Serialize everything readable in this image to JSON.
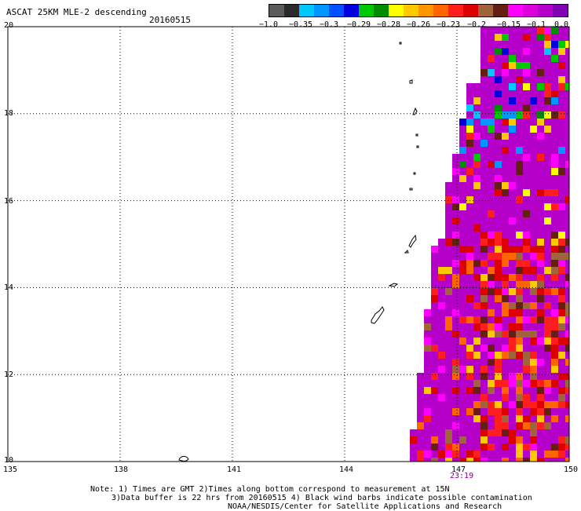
{
  "header": {
    "title": "ASCAT 25KM MLE-2 descending",
    "date": "20160515"
  },
  "colorbar": {
    "bins": [
      {
        "color": "#5a5a5a"
      },
      {
        "color": "#2a2a2a"
      },
      {
        "color": "#00c8ff"
      },
      {
        "color": "#0096ff"
      },
      {
        "color": "#0050ff"
      },
      {
        "color": "#0000dc"
      },
      {
        "color": "#00c800"
      },
      {
        "color": "#008c00"
      },
      {
        "color": "#ffff00"
      },
      {
        "color": "#ffc800"
      },
      {
        "color": "#ff9600"
      },
      {
        "color": "#ff6400"
      },
      {
        "color": "#ff1e1e"
      },
      {
        "color": "#dc0000"
      },
      {
        "color": "#a0643c"
      },
      {
        "color": "#641e14"
      },
      {
        "color": "#ff00ff"
      },
      {
        "color": "#dc00dc"
      },
      {
        "color": "#b400c8"
      },
      {
        "color": "#8200b4"
      }
    ],
    "labels": [
      "−1.0",
      "−0.35",
      "−0.3",
      "−0.29",
      "−0.28",
      "−0.26",
      "−0.23",
      "−0.2",
      "−0.15",
      "−0.1",
      "0.0"
    ]
  },
  "map": {
    "lon_range": [
      135,
      150
    ],
    "lat_range": [
      10,
      20
    ],
    "lon_ticks": [
      "135",
      "138",
      "141",
      "144",
      "147",
      "150"
    ],
    "lat_ticks": [
      "20",
      "18",
      "16",
      "14",
      "12",
      "10"
    ],
    "lon_grid": [
      138,
      141,
      144,
      147
    ],
    "lat_grid": [
      12,
      14,
      16,
      18
    ],
    "time_label": "23:19",
    "time_color": "#8b008b"
  },
  "notes": {
    "line1": "Note: 1) Times are GMT 2)Times along bottom correspond to measurement at 15N",
    "line2": "3)Data buffer is 22 hrs from 20160515 4) Black wind barbs indicate possible contamination",
    "line3": "NOAA/NESDIS/Center for Satellite Applications and Research"
  }
}
